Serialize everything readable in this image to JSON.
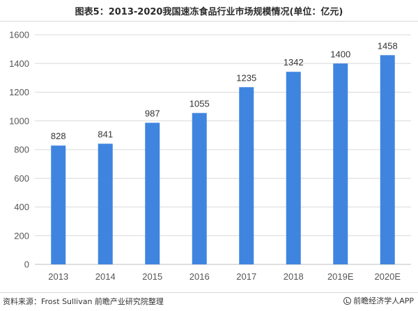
{
  "header": {
    "title": "图表5：2013-2020我国速冻食品行业市场规模情况(单位：亿元)"
  },
  "footer": {
    "source": "资料来源：Frost Sullivan 前瞻产业研究院整理",
    "brand": "前瞻经济学人APP"
  },
  "colors": {
    "bar": "#3f85e0",
    "grid": "#d9d9d9",
    "axis": "#bfbfbf"
  },
  "chart_data": {
    "type": "bar",
    "title": "图表5：2013-2020我国速冻食品行业市场规模情况(单位：亿元)",
    "xlabel": "",
    "ylabel": "",
    "categories": [
      "2013",
      "2014",
      "2015",
      "2016",
      "2017",
      "2018",
      "2019E",
      "2020E"
    ],
    "values": [
      828,
      841,
      987,
      1055,
      1235,
      1342,
      1400,
      1458
    ],
    "ylim": [
      0,
      1600
    ],
    "yticks": [
      0,
      200,
      400,
      600,
      800,
      1000,
      1200,
      1400,
      1600
    ],
    "grid": true,
    "legend": "none"
  }
}
